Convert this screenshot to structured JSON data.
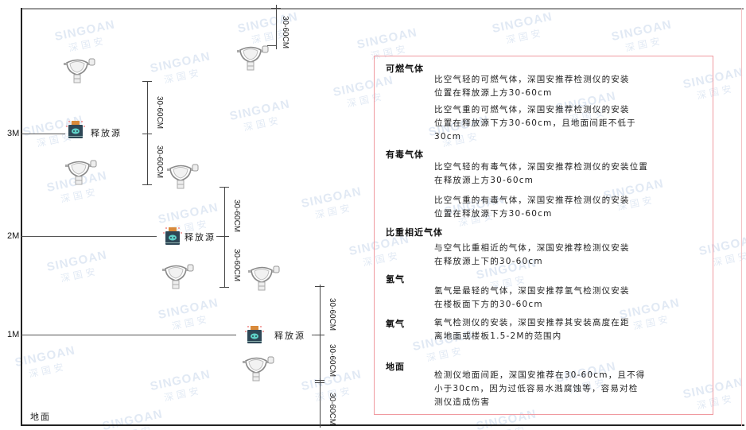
{
  "watermark": {
    "brand_en": "SINGOAN",
    "brand_cn": "深国安"
  },
  "levels": [
    {
      "label": "3M"
    },
    {
      "label": "2M"
    },
    {
      "label": "1M"
    }
  ],
  "ground_label": "地面",
  "source_label": "释放源",
  "dimension_label": "30-60CM",
  "colors": {
    "panel_border": "#f09aa0",
    "source_body": "#2e4756",
    "source_cap": "#d98a3a",
    "source_face": "#5fd1c8",
    "detector": "#8a8a8a"
  },
  "legend": {
    "sections": [
      {
        "heading": "可燃气体",
        "paragraphs": [
          [
            "比空气轻的可燃气体，深国安推荐检测仪的安装",
            "位置在释放源上方30-60cm"
          ],
          [
            "比空气重的可燃气体，深国安推荐检测仪的安装",
            "位置在释放源下方30-60cm，且地面间距不低于",
            "30cm"
          ]
        ]
      },
      {
        "heading": "有毒气体",
        "paragraphs": [
          [
            "比空气轻的有毒气体，深国安推荐检测仪的安装位置",
            "在释放源上方30-60cm"
          ],
          [
            "比空气重的有毒气体，深国安推荐检测仪的安装",
            "位置在释放源下方30-60cm"
          ]
        ]
      },
      {
        "heading": "比重相近气体",
        "paragraphs": [
          [
            "与空气比重相近的气体，深国安推荐检测仪安装",
            "在释放源上下的30-60cm"
          ]
        ]
      },
      {
        "heading": "氢气",
        "paragraphs": [
          [
            "氢气是最轻的气体，深国安推荐氢气检测仪安装",
            "在楼板面下方的30-60cm"
          ]
        ]
      },
      {
        "heading": "氧气",
        "paragraphs": [
          [
            "氧气检测仪的安装，深国安推荐其安装高度在距",
            "离地面或楼板1.5-2M的范围内"
          ]
        ]
      },
      {
        "heading": "地面",
        "paragraphs": [
          [
            "检测仪地面间距，深国安推荐在30-60cm，且不得",
            "小于30cm，因为过低容易水溅腐蚀等，容易对检",
            "测仪造成伤害"
          ]
        ]
      }
    ]
  }
}
